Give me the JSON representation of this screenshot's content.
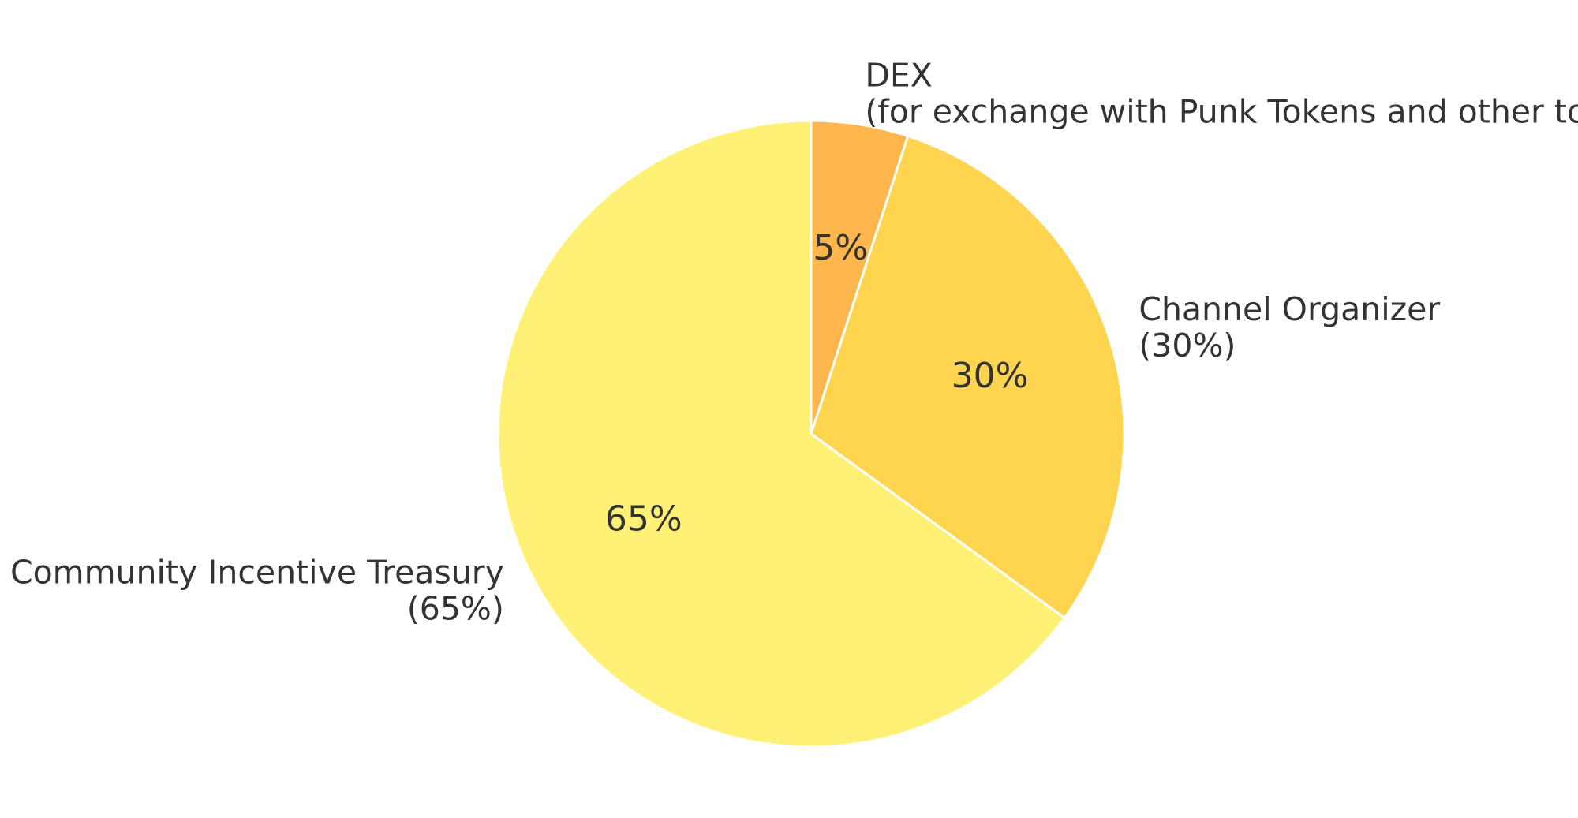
{
  "chart_data": {
    "type": "pie",
    "title": "",
    "start": "top",
    "direction": "clockwise",
    "slices": [
      {
        "name": "DEX",
        "value": 5,
        "pct_label": "5%",
        "label_lines": [
          "DEX",
          "(for exchange with Punk Tokens and other tokens)"
        ],
        "color": "#FFB74D"
      },
      {
        "name": "Channel Organizer",
        "value": 30,
        "pct_label": "30%",
        "label_lines": [
          "Channel Organizer",
          "(30%)"
        ],
        "color": "#FFD54F"
      },
      {
        "name": "Community Incentive Treasury",
        "value": 65,
        "pct_label": "65%",
        "label_lines": [
          "Community Incentive Treasury",
          "(65%)"
        ],
        "color": "#FFF176"
      }
    ],
    "edge_color": "#ffffff",
    "text_color": "#333333"
  }
}
